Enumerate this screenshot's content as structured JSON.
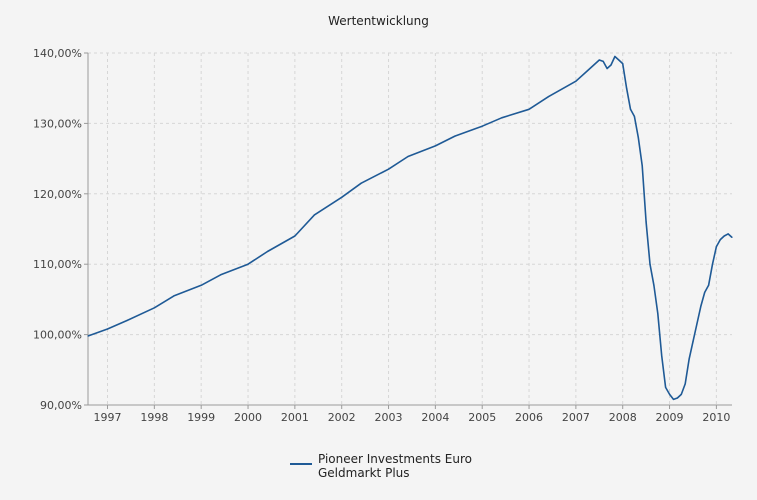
{
  "chart_data": {
    "type": "line",
    "title": "Wertentwicklung",
    "xlabel": "",
    "ylabel": "",
    "x_tick_labels": [
      "1997",
      "1998",
      "1999",
      "2000",
      "2001",
      "2002",
      "2003",
      "2004",
      "2005",
      "2006",
      "2007",
      "2008",
      "2009",
      "2010"
    ],
    "y_tick_labels": [
      "90,00%",
      "100,00%",
      "110,00%",
      "120,00%",
      "130,00%",
      "140,00%"
    ],
    "xlim": [
      "1996-08",
      "2010-05"
    ],
    "ylim": [
      90,
      140
    ],
    "grid": true,
    "legend_position": "bottom",
    "series": [
      {
        "name": "Pioneer Investments Euro Geldmarkt Plus",
        "color": "#1f5a96",
        "x": [
          "1996-08",
          "1997-01",
          "1997-06",
          "1998-01",
          "1998-06",
          "1999-01",
          "1999-06",
          "2000-01",
          "2000-06",
          "2001-01",
          "2001-06",
          "2002-01",
          "2002-06",
          "2003-01",
          "2003-06",
          "2004-01",
          "2004-06",
          "2005-01",
          "2005-06",
          "2006-01",
          "2006-06",
          "2007-01",
          "2007-04",
          "2007-07",
          "2007-08",
          "2007-09",
          "2007-10",
          "2007-11",
          "2007-12",
          "2008-01",
          "2008-02",
          "2008-03",
          "2008-04",
          "2008-05",
          "2008-06",
          "2008-07",
          "2008-08",
          "2008-09",
          "2008-10",
          "2008-11",
          "2008-12",
          "2009-01",
          "2009-02",
          "2009-03",
          "2009-04",
          "2009-05",
          "2009-06",
          "2009-07",
          "2009-08",
          "2009-09",
          "2009-10",
          "2009-11",
          "2009-12",
          "2010-01",
          "2010-02",
          "2010-03",
          "2010-04",
          "2010-05"
        ],
        "values": [
          99.8,
          100.8,
          102.0,
          103.8,
          105.5,
          107.0,
          108.5,
          110.0,
          111.8,
          114.0,
          117.0,
          119.5,
          121.5,
          123.5,
          125.3,
          126.8,
          128.2,
          129.6,
          130.8,
          132.0,
          133.8,
          136.0,
          137.5,
          139.0,
          138.8,
          137.8,
          138.3,
          139.5,
          139.0,
          138.5,
          135.0,
          132.0,
          131.0,
          128.0,
          124.0,
          116.0,
          110.0,
          107.0,
          103.0,
          97.0,
          92.5,
          91.5,
          90.8,
          91.0,
          91.5,
          93.0,
          96.5,
          99.0,
          101.5,
          104.0,
          106.0,
          107.0,
          110.0,
          112.5,
          113.5,
          114.0,
          114.3,
          113.8
        ]
      }
    ]
  }
}
